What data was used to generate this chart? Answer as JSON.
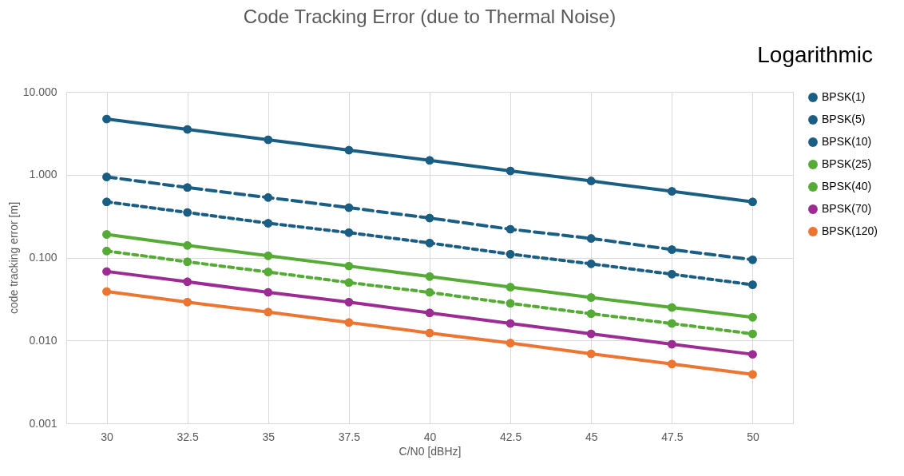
{
  "chart_data": {
    "type": "line",
    "title": "Code Tracking Error (due to Thermal Noise)",
    "xlabel": "C/N0 [dBHz]",
    "ylabel": "code tracking error [m]",
    "categories": [
      "30",
      "32.5",
      "35",
      "37.5",
      "40",
      "42.5",
      "45",
      "47.5",
      "50"
    ],
    "log": "y",
    "ylim": [
      0.001,
      10
    ],
    "yticks": [
      {
        "value": 0.001,
        "label": "0.001"
      },
      {
        "value": 0.01,
        "label": "0.010"
      },
      {
        "value": 0.1,
        "label": "0.100"
      },
      {
        "value": 1,
        "label": "1.000"
      },
      {
        "value": 10,
        "label": "10.000"
      }
    ],
    "grid": true,
    "legend": "right",
    "marker": "circle",
    "annotations": [
      "Logarithmic"
    ],
    "series": [
      {
        "name": "BPSK(1)",
        "color": "#1b5e84",
        "line_style": "solid",
        "values": [
          4.7,
          3.52,
          2.64,
          1.98,
          1.49,
          1.11,
          0.84,
          0.63,
          0.47
        ]
      },
      {
        "name": "BPSK(5)",
        "color": "#1b5e84",
        "line_style": "dashed",
        "values": [
          0.94,
          0.7,
          0.53,
          0.4,
          0.3,
          0.22,
          0.17,
          0.125,
          0.094
        ]
      },
      {
        "name": "BPSK(10)",
        "color": "#1b5e84",
        "line_style": "dotted",
        "values": [
          0.47,
          0.35,
          0.26,
          0.2,
          0.15,
          0.11,
          0.084,
          0.063,
          0.047
        ]
      },
      {
        "name": "BPSK(25)",
        "color": "#55ab35",
        "line_style": "solid",
        "values": [
          0.19,
          0.14,
          0.105,
          0.079,
          0.059,
          0.044,
          0.033,
          0.025,
          0.019
        ]
      },
      {
        "name": "BPSK(40)",
        "color": "#55ab35",
        "line_style": "dotted",
        "values": [
          0.12,
          0.089,
          0.067,
          0.05,
          0.038,
          0.028,
          0.021,
          0.016,
          0.012
        ]
      },
      {
        "name": "BPSK(70)",
        "color": "#9c2b93",
        "line_style": "solid",
        "values": [
          0.068,
          0.051,
          0.038,
          0.029,
          0.0215,
          0.016,
          0.012,
          0.009,
          0.0068
        ]
      },
      {
        "name": "BPSK(120)",
        "color": "#ec7532",
        "line_style": "solid",
        "values": [
          0.039,
          0.029,
          0.022,
          0.0165,
          0.0123,
          0.0093,
          0.0069,
          0.0052,
          0.0039
        ]
      }
    ]
  }
}
